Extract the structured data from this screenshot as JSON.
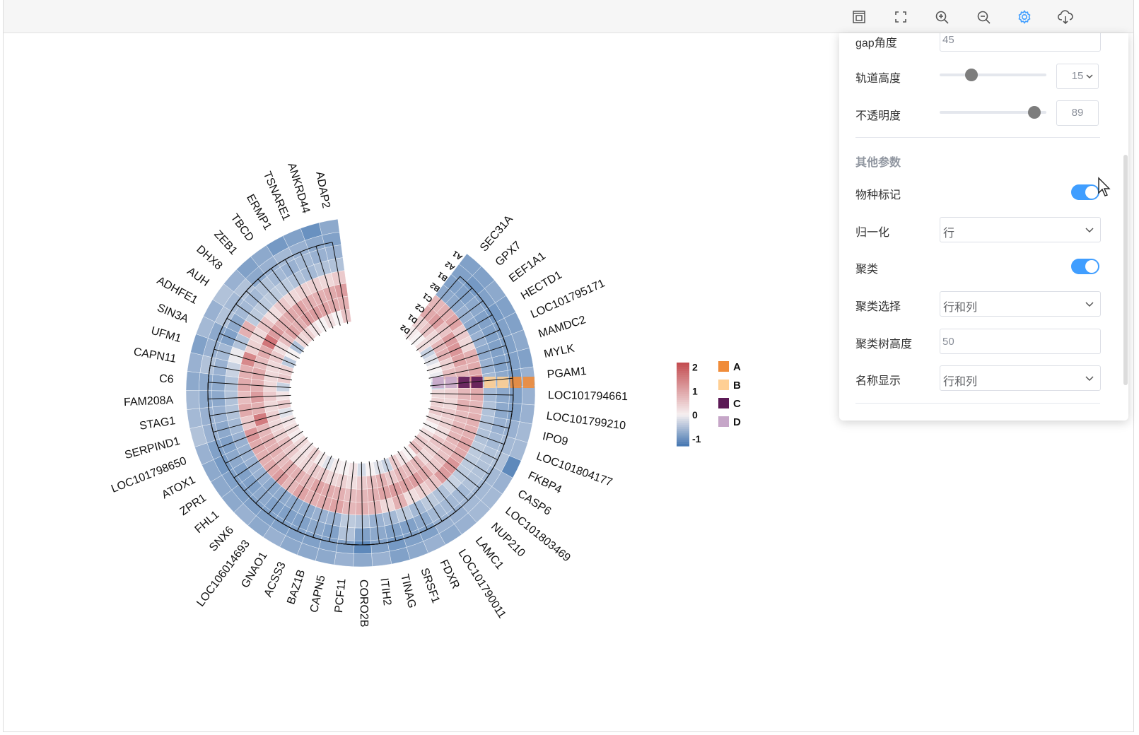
{
  "toolbar": {
    "icons": [
      "fit-view-icon",
      "fullscreen-icon",
      "zoom-in-icon",
      "zoom-out-icon",
      "settings-icon",
      "download-icon"
    ]
  },
  "settings_panel": {
    "gap_angle": {
      "label": "gap角度",
      "value": "45"
    },
    "track_height": {
      "label": "轨道高度",
      "slider_value": 15,
      "slider_min": 0,
      "slider_max": 50,
      "value": "15"
    },
    "opacity": {
      "label": "不透明度",
      "slider_value": 89,
      "slider_min": 0,
      "slider_max": 100,
      "value": "89"
    },
    "other_params_title": "其他参数",
    "species_mark": {
      "label": "物种标记",
      "on": true
    },
    "normalize": {
      "label": "归一化",
      "value": "行"
    },
    "cluster": {
      "label": "聚类",
      "on": true
    },
    "cluster_choice": {
      "label": "聚类选择",
      "value": "行和列"
    },
    "tree_height": {
      "label": "聚类树高度",
      "value": "50"
    },
    "name_display": {
      "label": "名称显示",
      "value": "行和列"
    }
  },
  "chart_data": {
    "type": "heatmap",
    "layout": "circular",
    "genes": [
      "SEC31A",
      "GPX7",
      "EEF1A1",
      "HECTD1",
      "LOC101795171",
      "MAMDC2",
      "MYLK",
      "PGAM1",
      "LOC101794661",
      "LOC101799210",
      "IPO9",
      "LOC101804177",
      "FKBP4",
      "CASP6",
      "LOC101803469",
      "NUP210",
      "LAMC1",
      "LOC101790011",
      "FDXR",
      "SRSF1",
      "TINAG",
      "ITIH2",
      "CORO2B",
      "PCF11",
      "CAPN5",
      "BAZ1B",
      "ACSS3",
      "GNAO1",
      "LOC106014693",
      "SNX6",
      "FHL1",
      "ZPR1",
      "ATOX1",
      "LOC101798650",
      "SERPIND1",
      "STAG1",
      "FAM208A",
      "C6",
      "CAPN11",
      "UFM1",
      "SIN3A",
      "ADHFE1",
      "AUH",
      "DHX8",
      "ZEB1",
      "TBCD",
      "ERMP1",
      "TSNARE1",
      "ANKRD44",
      "ADAP2"
    ],
    "samples": [
      "A1",
      "A2",
      "B1",
      "B2",
      "C1",
      "C2",
      "D1",
      "D2"
    ],
    "sample_groups": [
      "A",
      "A",
      "B",
      "B",
      "C",
      "C",
      "D",
      "D"
    ],
    "values": [
      [
        -1.0,
        -1.0,
        -1.0,
        -0.9,
        0.9,
        1.1,
        0.5,
        0.1
      ],
      [
        -1.0,
        -1.1,
        -1.0,
        -0.9,
        1.0,
        1.3,
        0.7,
        0.0
      ],
      [
        -0.9,
        -1.0,
        -0.9,
        -0.8,
        1.2,
        0.7,
        0.4,
        0.3
      ],
      [
        -1.0,
        -1.1,
        -1.0,
        -0.9,
        0.6,
        1.3,
        0.9,
        -0.4
      ],
      [
        -1.0,
        -1.0,
        -1.0,
        -0.8,
        0.4,
        1.4,
        1.0,
        -0.2
      ],
      [
        -0.9,
        -1.0,
        -1.0,
        -0.9,
        1.0,
        1.2,
        0.5,
        0.0
      ],
      [
        -1.0,
        -1.0,
        -1.0,
        -0.8,
        1.1,
        0.9,
        0.8,
        -0.1
      ],
      [
        -0.8,
        -1.1,
        -0.9,
        -0.7,
        1.5,
        1.0,
        0.3,
        -0.4
      ],
      [
        -0.8,
        -1.0,
        -0.9,
        -0.7,
        1.1,
        0.9,
        0.5,
        0.4
      ],
      [
        -0.8,
        -1.0,
        -0.9,
        -0.6,
        0.9,
        1.0,
        0.4,
        0.5
      ],
      [
        -0.7,
        -0.8,
        -0.8,
        -0.6,
        1.0,
        0.8,
        0.6,
        0.6
      ],
      [
        -0.7,
        -0.7,
        -0.7,
        -0.6,
        1.0,
        0.9,
        0.5,
        0.3
      ],
      [
        -1.6,
        -0.6,
        -0.6,
        -0.5,
        1.2,
        0.9,
        0.3,
        0.0
      ],
      [
        -0.8,
        -0.7,
        -0.6,
        -0.5,
        1.1,
        0.8,
        0.7,
        0.3
      ],
      [
        -0.7,
        -0.7,
        -0.6,
        -0.5,
        1.4,
        0.7,
        0.5,
        0.6
      ],
      [
        -0.7,
        -0.7,
        -0.7,
        -0.4,
        1.3,
        0.6,
        0.4,
        0.8
      ],
      [
        -0.8,
        -0.8,
        -0.7,
        -0.6,
        0.7,
        1.1,
        0.9,
        0.0
      ],
      [
        -0.9,
        -0.8,
        -0.7,
        -0.5,
        0.5,
        1.3,
        0.8,
        0.2
      ],
      [
        -0.8,
        -1.0,
        -0.9,
        -0.7,
        0.3,
        1.2,
        0.9,
        0.6
      ],
      [
        -0.9,
        -1.0,
        -1.0,
        -0.5,
        1.0,
        1.3,
        0.6,
        -0.4
      ],
      [
        -1.0,
        -1.1,
        -1.0,
        -0.7,
        0.4,
        1.2,
        1.0,
        -0.2
      ],
      [
        -0.8,
        -1.0,
        -0.9,
        -0.8,
        0.9,
        1.0,
        0.8,
        0.0
      ],
      [
        -0.9,
        -1.4,
        -1.0,
        -0.6,
        1.0,
        0.9,
        0.6,
        -0.3
      ],
      [
        -0.8,
        -1.0,
        -0.6,
        -0.5,
        0.9,
        0.8,
        0.3,
        0.2
      ],
      [
        -0.9,
        -1.0,
        -1.0,
        -0.8,
        1.2,
        1.0,
        0.5,
        0.0
      ],
      [
        -0.9,
        -1.0,
        -0.9,
        -0.8,
        1.1,
        1.1,
        0.4,
        0.1
      ],
      [
        -0.9,
        -1.0,
        -1.0,
        -0.9,
        1.0,
        1.2,
        0.6,
        -0.2
      ],
      [
        -0.8,
        -1.0,
        -1.0,
        -0.9,
        1.2,
        0.9,
        0.6,
        0.1
      ],
      [
        -0.9,
        -1.0,
        -1.0,
        -0.9,
        0.9,
        1.0,
        0.4,
        0.5
      ],
      [
        -0.8,
        -1.0,
        -0.9,
        -0.9,
        1.3,
        1.0,
        0.3,
        0.2
      ],
      [
        -0.9,
        -1.0,
        -1.0,
        -0.8,
        1.1,
        0.8,
        0.6,
        0.4
      ],
      [
        -0.9,
        -1.0,
        -1.0,
        -0.8,
        1.0,
        1.0,
        0.8,
        0.1
      ],
      [
        -0.9,
        -1.1,
        -0.9,
        -0.8,
        1.1,
        1.0,
        0.5,
        0.3
      ],
      [
        -0.8,
        -1.0,
        -1.0,
        -0.8,
        1.4,
        0.9,
        0.4,
        0.2
      ],
      [
        -0.6,
        -0.8,
        -0.9,
        -0.7,
        0.6,
        1.8,
        0.5,
        -0.2
      ],
      [
        -0.7,
        -0.8,
        -0.8,
        -0.6,
        1.1,
        1.0,
        0.4,
        0.6
      ],
      [
        -0.7,
        -0.9,
        -0.9,
        -0.6,
        0.8,
        1.3,
        0.6,
        0.2
      ],
      [
        -0.9,
        -0.9,
        -0.9,
        -0.6,
        1.1,
        1.0,
        0.4,
        -0.4
      ],
      [
        -0.8,
        -0.6,
        -0.8,
        -0.4,
        1.0,
        1.1,
        0.4,
        0.6
      ],
      [
        -1.0,
        -0.8,
        -0.7,
        -0.1,
        1.6,
        0.8,
        0.4,
        0.5
      ],
      [
        -0.7,
        -0.9,
        -1.0,
        -0.6,
        0.5,
        1.1,
        0.6,
        -0.5
      ],
      [
        -0.8,
        -0.6,
        -0.9,
        1.0,
        0.4,
        1.9,
        0.3,
        0.0
      ],
      [
        -0.6,
        -0.7,
        -0.7,
        -0.5,
        0.7,
        1.3,
        0.8,
        -0.6
      ],
      [
        -0.8,
        -0.6,
        -0.7,
        -0.5,
        0.3,
        1.0,
        1.2,
        0.4
      ],
      [
        -1.0,
        -0.9,
        -0.6,
        -0.5,
        0.6,
        1.1,
        1.0,
        0.5
      ],
      [
        -0.9,
        -0.8,
        -0.7,
        -0.5,
        0.4,
        1.2,
        1.3,
        0.2
      ],
      [
        -1.1,
        -0.7,
        -0.8,
        -0.6,
        0.5,
        1.0,
        1.3,
        0.0
      ],
      [
        -1.0,
        -0.8,
        -0.7,
        -0.7,
        0.5,
        1.0,
        1.2,
        0.3
      ],
      [
        -1.2,
        -0.9,
        -0.8,
        -0.6,
        0.4,
        1.1,
        1.1,
        0.0
      ],
      [
        -0.9,
        -1.0,
        -0.8,
        -0.6,
        0.6,
        1.3,
        1.0,
        0.7
      ]
    ],
    "color_scale": {
      "min": -1.3,
      "mid": 0,
      "max": 2.2,
      "low_color": "#4a7ab3",
      "mid_color": "#f6f0f1",
      "high_color": "#c44e52",
      "ticks": [
        "2",
        "1",
        "0",
        "-1"
      ]
    },
    "group_legend": [
      {
        "label": "A",
        "color": "#f08c3a"
      },
      {
        "label": "B",
        "color": "#ffcf94"
      },
      {
        "label": "C",
        "color": "#5c1a56"
      },
      {
        "label": "D",
        "color": "#c6a6c8"
      }
    ],
    "track_labels": [
      "A1",
      "A2",
      "B1",
      "B2",
      "C1",
      "C2",
      "D1",
      "D2"
    ]
  }
}
